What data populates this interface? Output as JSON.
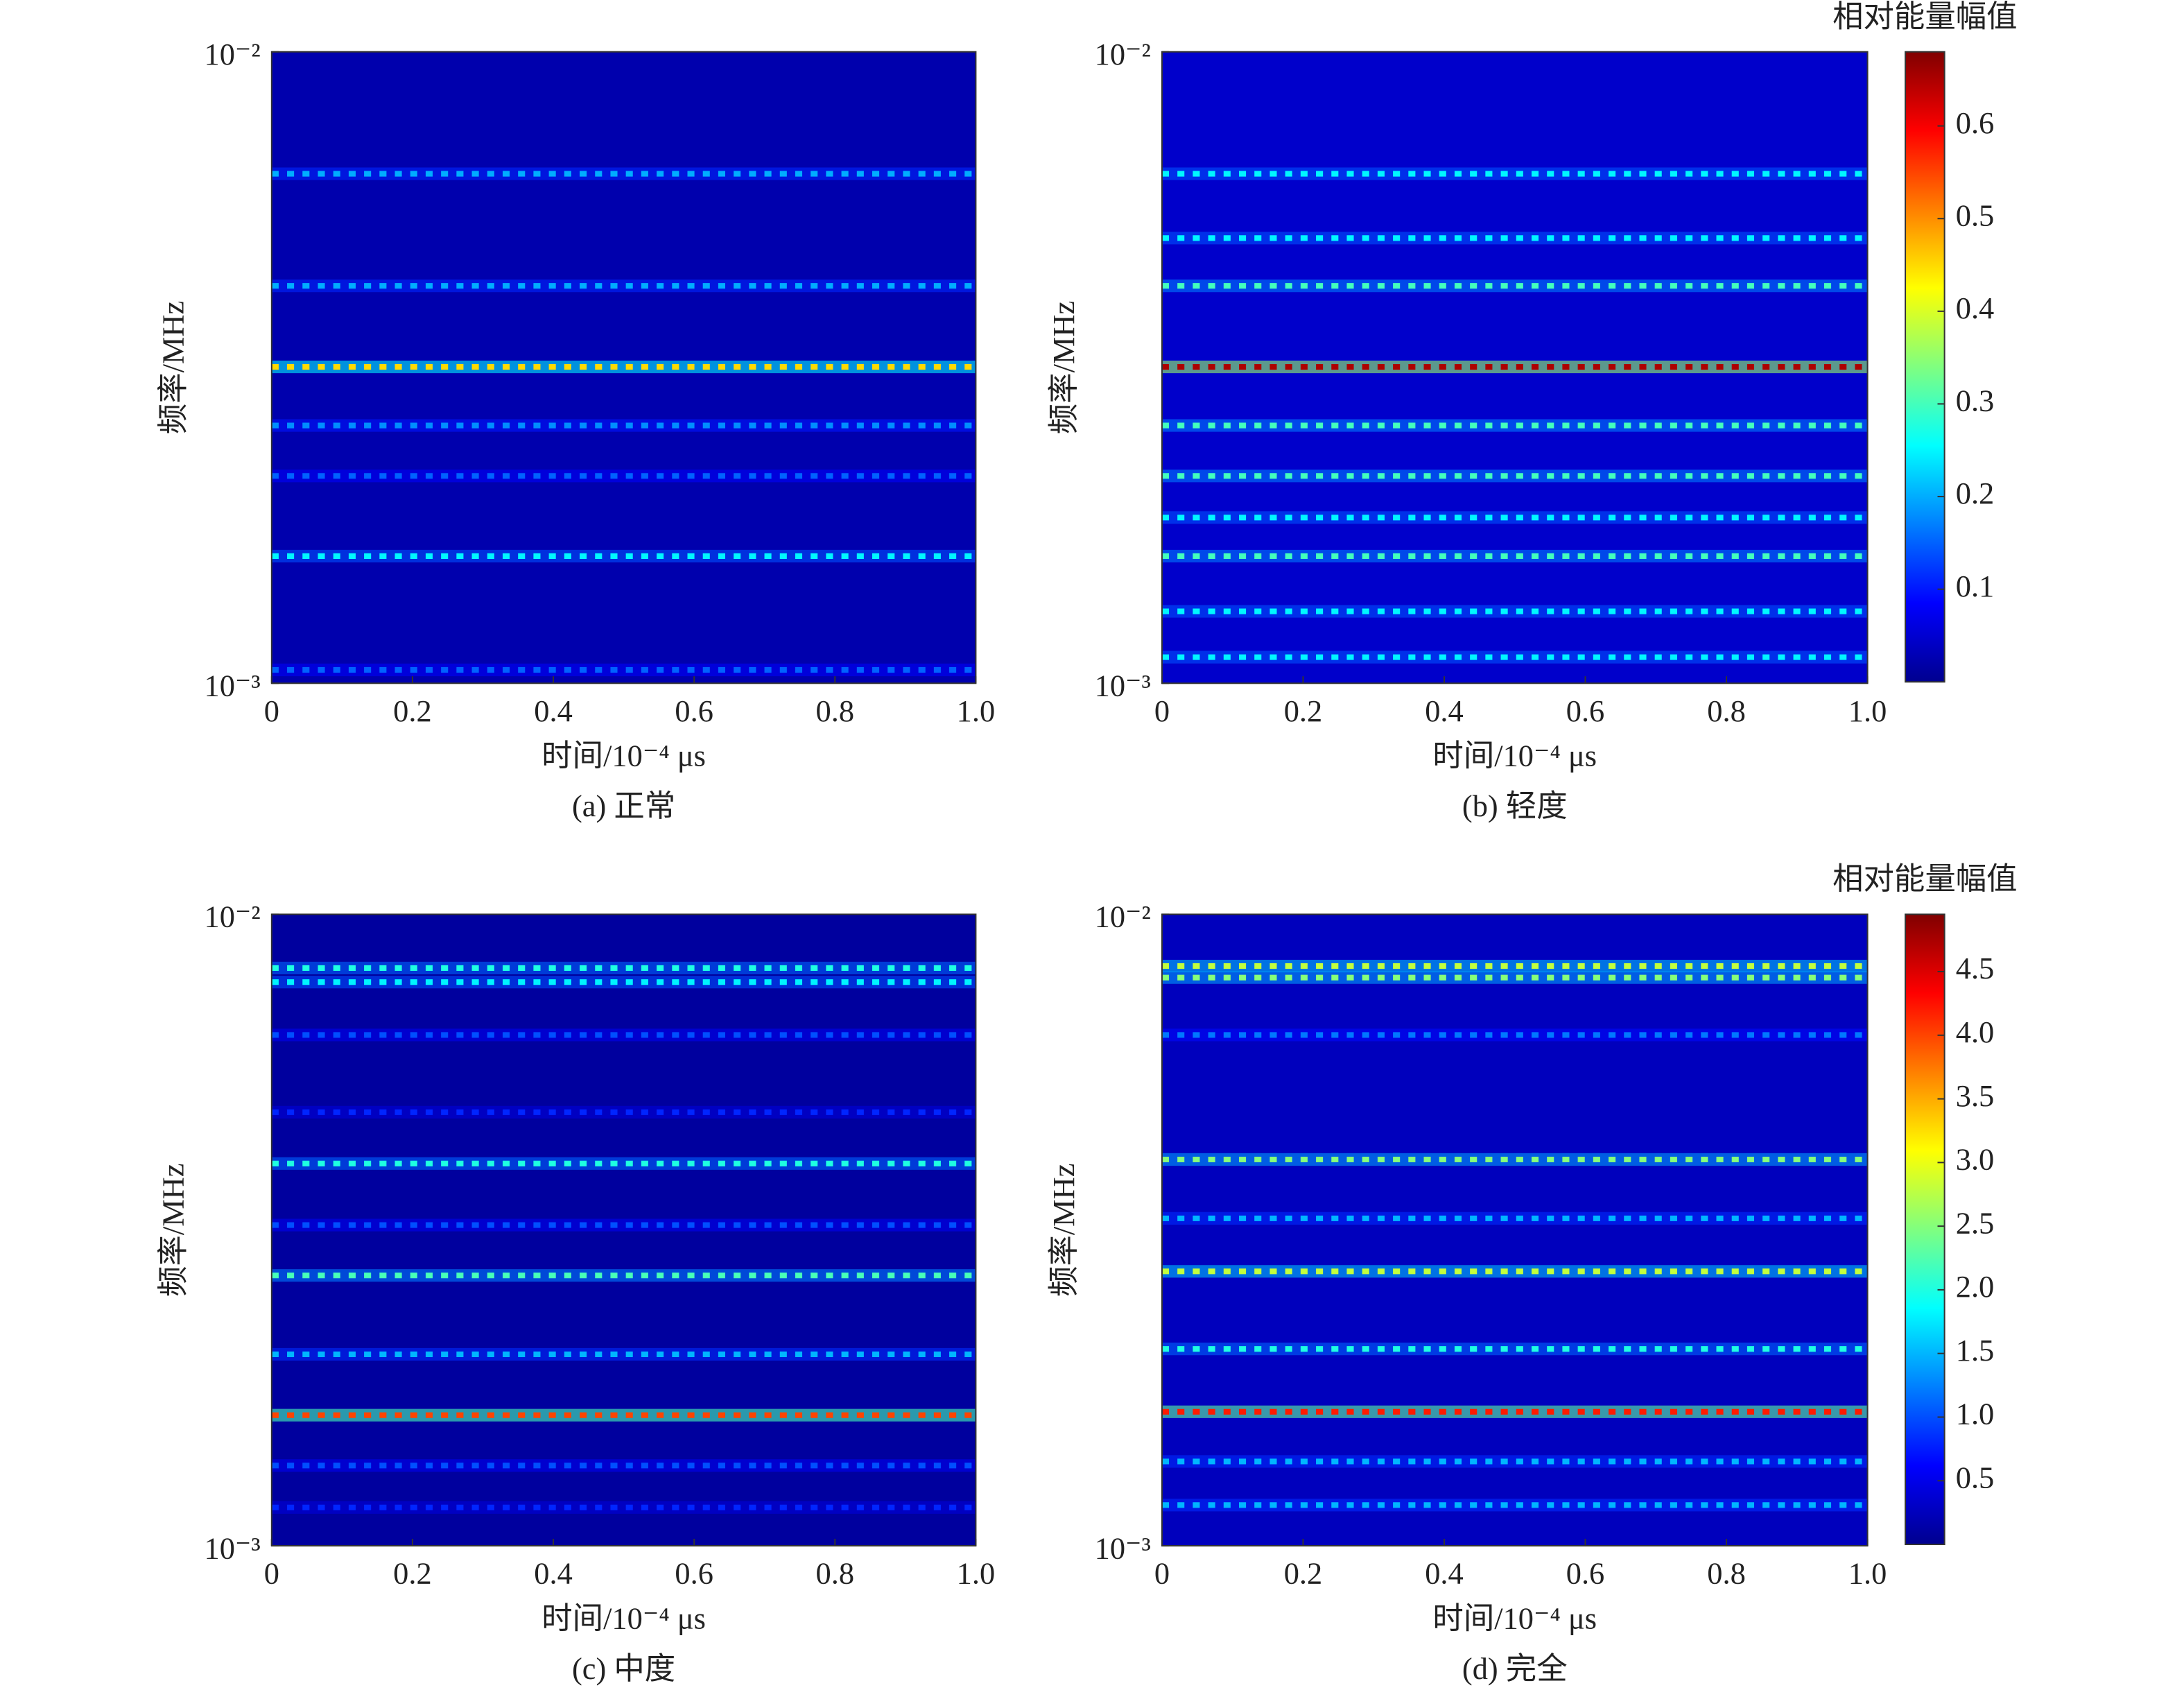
{
  "chart_data": [
    {
      "type": "heatmap",
      "caption": "(a) 正常",
      "xlabel": "时间/10⁻⁴ μs",
      "ylabel": "频率/MHz",
      "xlim": [
        0,
        1
      ],
      "xticks": [
        0,
        0.2,
        0.4,
        0.6,
        0.8,
        {
          "value": 1,
          "label": "1.0"
        }
      ],
      "ylim": [
        0.001,
        0.01
      ],
      "log_y": true,
      "yticks": [
        {
          "value": 0.001,
          "label": "10⁻³"
        },
        {
          "value": 0.01,
          "label": "10⁻²"
        }
      ],
      "background": 0.03,
      "band_freqs": [
        0.00641,
        0.00426,
        0.00317,
        0.00256,
        0.00213,
        0.00159,
        0.00105
      ],
      "band_levels": [
        0.2,
        0.2,
        0.45,
        0.18,
        0.15,
        0.25,
        0.15
      ]
    },
    {
      "type": "heatmap",
      "caption": "(b) 轻度",
      "xlabel": "时间/10⁻⁴ μs",
      "ylabel": "频率/MHz",
      "xlim": [
        0,
        1
      ],
      "xticks": [
        0,
        0.2,
        0.4,
        0.6,
        0.8,
        {
          "value": 1,
          "label": "1.0"
        }
      ],
      "ylim": [
        0.001,
        0.01
      ],
      "log_y": true,
      "yticks": [
        {
          "value": 0.001,
          "label": "10⁻³"
        },
        {
          "value": 0.01,
          "label": "10⁻²"
        }
      ],
      "background": 0.05,
      "band_freqs": [
        0.00641,
        0.00507,
        0.00426,
        0.00317,
        0.00256,
        0.00213,
        0.00183,
        0.00159,
        0.0013,
        0.0011
      ],
      "band_levels": [
        0.25,
        0.25,
        0.3,
        0.65,
        0.3,
        0.3,
        0.25,
        0.3,
        0.25,
        0.25
      ],
      "colorbar": {
        "title": "相对能量幅值",
        "lim": [
          0,
          0.68
        ],
        "ticks": [
          0.1,
          0.2,
          0.3,
          0.4,
          0.5,
          0.6
        ]
      }
    },
    {
      "type": "heatmap",
      "caption": "(c) 中度",
      "xlabel": "时间/10⁻⁴ μs",
      "ylabel": "频率/MHz",
      "xlim": [
        0,
        1
      ],
      "xticks": [
        0,
        0.2,
        0.4,
        0.6,
        0.8,
        {
          "value": 1,
          "label": "1.0"
        }
      ],
      "ylim": [
        0.001,
        0.01
      ],
      "log_y": true,
      "yticks": [
        {
          "value": 0.001,
          "label": "10⁻³"
        },
        {
          "value": 0.01,
          "label": "10⁻²"
        }
      ],
      "background": 0.15,
      "band_freqs": [
        0.00822,
        0.00781,
        0.00644,
        0.00486,
        0.00403,
        0.00322,
        0.00268,
        0.00201,
        0.00161,
        0.00134,
        0.00115
      ],
      "band_levels": [
        2.0,
        1.8,
        1.0,
        0.8,
        2.0,
        1.0,
        2.2,
        1.5,
        4.0,
        1.0,
        0.8
      ]
    },
    {
      "type": "heatmap",
      "caption": "(d) 完全",
      "xlabel": "时间/10⁻⁴ μs",
      "ylabel": "频率/MHz",
      "xlim": [
        0,
        1
      ],
      "xticks": [
        0,
        0.2,
        0.4,
        0.6,
        0.8,
        {
          "value": 1,
          "label": "1.0"
        }
      ],
      "ylim": [
        0.001,
        0.01
      ],
      "log_y": true,
      "yticks": [
        {
          "value": 0.001,
          "label": "10⁻³"
        },
        {
          "value": 0.01,
          "label": "10⁻²"
        }
      ],
      "background": 0.3,
      "band_freqs": [
        0.00828,
        0.00794,
        0.00644,
        0.00409,
        0.0033,
        0.00272,
        0.00205,
        0.00163,
        0.00136,
        0.00116
      ],
      "band_levels": [
        2.8,
        2.5,
        1.2,
        2.5,
        1.5,
        2.8,
        2.0,
        4.2,
        1.5,
        1.5
      ],
      "colorbar": {
        "title": "相对能量幅值",
        "lim": [
          0,
          4.95
        ],
        "ticks": [
          0.5,
          {
            "value": 1,
            "label": "1.0"
          },
          1.5,
          {
            "value": 2,
            "label": "2.0"
          },
          2.5,
          {
            "value": 3,
            "label": "3.0"
          },
          3.5,
          {
            "value": 4,
            "label": "4.0"
          },
          4.5
        ]
      }
    }
  ]
}
